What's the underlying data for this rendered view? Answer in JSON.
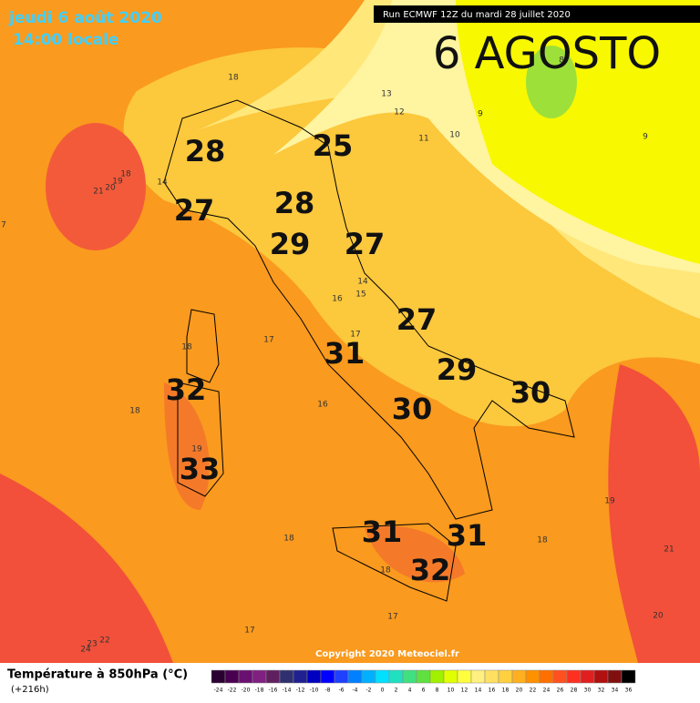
{
  "header": {
    "date": "jeudi 6 août 2020",
    "time": "14:00 locale",
    "run": "Run ECMWF 12Z du mardi 28 juillet 2020",
    "headline": "6 AGOSTO"
  },
  "annotations": [
    "28",
    "25",
    "28",
    "27",
    "29",
    "27",
    "27",
    "31",
    "32",
    "29",
    "30",
    "30",
    "33",
    "31",
    "31",
    "32"
  ],
  "isotherm_labels": [
    "18",
    "13",
    "12",
    "11",
    "10",
    "9",
    "8",
    "9",
    "21",
    "20",
    "19",
    "18",
    "14",
    "7",
    "16",
    "14",
    "15",
    "17",
    "17",
    "18",
    "18",
    "16",
    "19",
    "19",
    "21",
    "18",
    "18",
    "18",
    "17",
    "17",
    "20",
    "24",
    "23",
    "22"
  ],
  "copyright": "Copyright 2020 Meteociel.fr",
  "legend": {
    "title": "Température à 850hPa (°C)",
    "lead": "(+216h)",
    "scale": [
      -24,
      -22,
      -20,
      -18,
      -16,
      -14,
      -12,
      -10,
      -8,
      -6,
      -4,
      -2,
      0,
      2,
      4,
      6,
      8,
      10,
      12,
      14,
      16,
      18,
      20,
      22,
      24,
      26,
      28,
      30,
      32,
      34,
      36
    ]
  }
}
